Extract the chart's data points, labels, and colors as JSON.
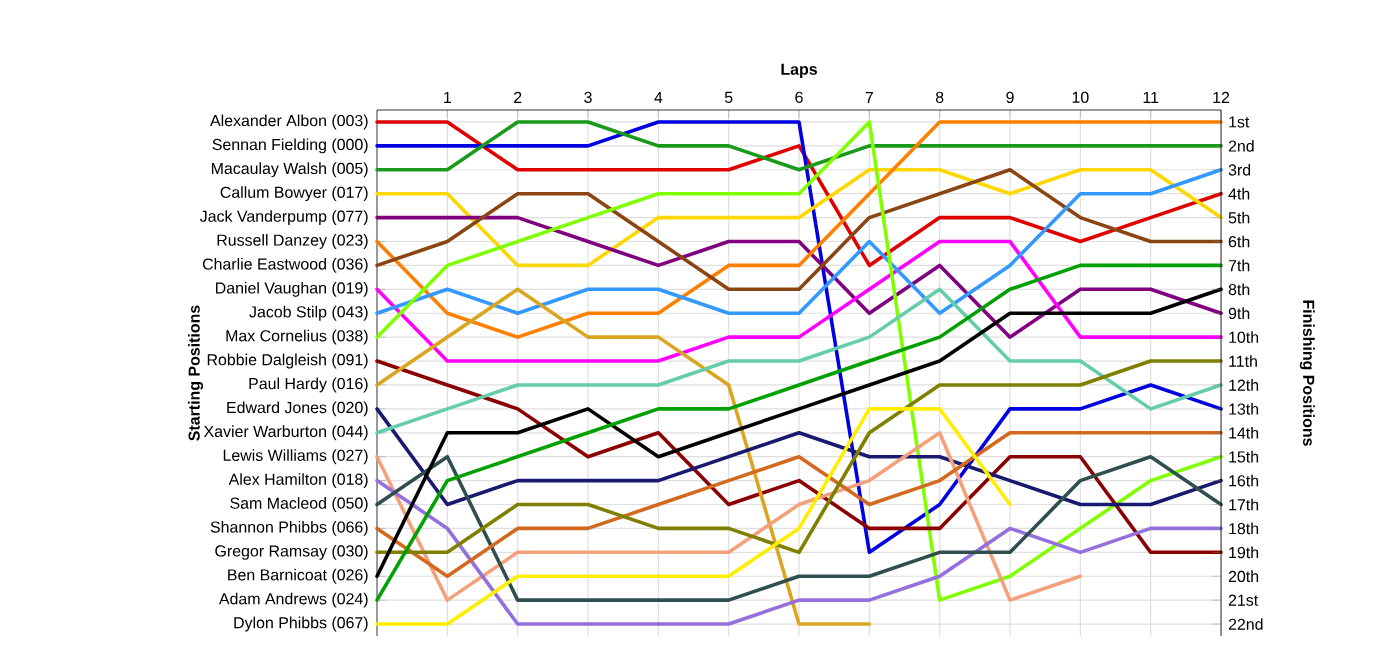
{
  "chart_data": {
    "type": "line",
    "xlabel": "Laps",
    "annotations": [
      "Starting Positions"
    ],
    "y2label": "Finishing Positions",
    "x": [
      0,
      1,
      2,
      3,
      4,
      5,
      6,
      7,
      8,
      9,
      10,
      11,
      12
    ],
    "xlim": [
      0,
      12
    ],
    "xticks": [
      1,
      2,
      3,
      4,
      5,
      6,
      7,
      8,
      9,
      10,
      11,
      12
    ],
    "ylim": [
      22.5,
      0.5
    ],
    "yticks": [
      {
        "value": 1,
        "label": "1st"
      },
      {
        "value": 2,
        "label": "2nd"
      },
      {
        "value": 3,
        "label": "3rd"
      },
      {
        "value": 4,
        "label": "4th"
      },
      {
        "value": 5,
        "label": "5th"
      },
      {
        "value": 6,
        "label": "6th"
      },
      {
        "value": 7,
        "label": "7th"
      },
      {
        "value": 8,
        "label": "8th"
      },
      {
        "value": 9,
        "label": "9th"
      },
      {
        "value": 10,
        "label": "10th"
      },
      {
        "value": 11,
        "label": "11th"
      },
      {
        "value": 12,
        "label": "12th"
      },
      {
        "value": 13,
        "label": "13th"
      },
      {
        "value": 14,
        "label": "14th"
      },
      {
        "value": 15,
        "label": "15th"
      },
      {
        "value": 16,
        "label": "16th"
      },
      {
        "value": 17,
        "label": "17th"
      },
      {
        "value": 18,
        "label": "18th"
      },
      {
        "value": 19,
        "label": "19th"
      },
      {
        "value": 20,
        "label": "20th"
      },
      {
        "value": 21,
        "label": "21st"
      },
      {
        "value": 22,
        "label": "22nd"
      }
    ],
    "grid": true,
    "series": [
      {
        "name": "Alexander Albon (003)",
        "color": "#e00000",
        "values": [
          1,
          1,
          3,
          3,
          3,
          3,
          2,
          7,
          5,
          5,
          6,
          5,
          4
        ]
      },
      {
        "name": "Sennan Fielding (000)",
        "color": "#0000e0",
        "values": [
          2,
          2,
          2,
          2,
          1,
          1,
          1,
          19,
          17,
          13,
          13,
          12,
          13
        ]
      },
      {
        "name": "Macaulay Walsh (005)",
        "color": "#1a9a1a",
        "values": [
          3,
          3,
          1,
          1,
          2,
          2,
          3,
          2,
          2,
          2,
          2,
          2,
          2
        ]
      },
      {
        "name": "Callum Bowyer (017)",
        "color": "#ffd700",
        "values": [
          4,
          4,
          7,
          7,
          5,
          5,
          5,
          3,
          3,
          4,
          3,
          3,
          5
        ]
      },
      {
        "name": "Jack Vanderpump (077)",
        "color": "#800080",
        "values": [
          5,
          5,
          5,
          6,
          7,
          6,
          6,
          9,
          7,
          10,
          8,
          8,
          9
        ]
      },
      {
        "name": "Russell Danzey (023)",
        "color": "#ff8000",
        "values": [
          6,
          9,
          10,
          9,
          9,
          7,
          7,
          4,
          1,
          1,
          1,
          1,
          1
        ]
      },
      {
        "name": "Charlie Eastwood (036)",
        "color": "#8b4513",
        "values": [
          7,
          6,
          4,
          4,
          6,
          8,
          8,
          5,
          4,
          3,
          5,
          6,
          6
        ]
      },
      {
        "name": "Daniel Vaughan (019)",
        "color": "#ff00ff",
        "values": [
          8,
          11,
          11,
          11,
          11,
          10,
          10,
          8,
          6,
          6,
          10,
          10,
          10
        ]
      },
      {
        "name": "Jacob Stilp (043)",
        "color": "#3399ff",
        "values": [
          9,
          8,
          9,
          8,
          8,
          9,
          9,
          6,
          9,
          7,
          4,
          4,
          3
        ]
      },
      {
        "name": "Max Cornelius (038)",
        "color": "#80ff00",
        "values": [
          10,
          7,
          6,
          5,
          4,
          4,
          4,
          1,
          21,
          20,
          18,
          16,
          15
        ]
      },
      {
        "name": "Robbie Dalgleish (091)",
        "color": "#8b0000",
        "values": [
          11,
          12,
          13,
          15,
          14,
          17,
          16,
          18,
          18,
          15,
          15,
          19,
          19
        ]
      },
      {
        "name": "Paul Hardy (016)",
        "color": "#daa520",
        "values": [
          12,
          10,
          8,
          10,
          10,
          12,
          22,
          22,
          null,
          null,
          null,
          null,
          null
        ]
      },
      {
        "name": "Edward Jones (020)",
        "color": "#191970",
        "values": [
          13,
          17,
          16,
          16,
          16,
          15,
          14,
          15,
          15,
          16,
          17,
          17,
          16
        ]
      },
      {
        "name": "Xavier Warburton (044)",
        "color": "#66cdaa",
        "values": [
          14,
          13,
          12,
          12,
          12,
          11,
          11,
          10,
          8,
          11,
          11,
          13,
          12
        ]
      },
      {
        "name": "Lewis Williams (027)",
        "color": "#f4a07a",
        "values": [
          15,
          21,
          19,
          19,
          19,
          19,
          17,
          16,
          14,
          21,
          20,
          null,
          null
        ]
      },
      {
        "name": "Alex Hamilton (018)",
        "color": "#9370db",
        "values": [
          16,
          18,
          22,
          22,
          22,
          22,
          21,
          21,
          20,
          18,
          19,
          18,
          18
        ]
      },
      {
        "name": "Sam Macleod (050)",
        "color": "#2f4f4f",
        "values": [
          17,
          15,
          21,
          21,
          21,
          21,
          20,
          20,
          19,
          19,
          16,
          15,
          17
        ]
      },
      {
        "name": "Shannon Phibbs (066)",
        "color": "#d2691e",
        "values": [
          18,
          20,
          18,
          18,
          17,
          16,
          15,
          17,
          16,
          14,
          14,
          14,
          14
        ]
      },
      {
        "name": "Gregor Ramsay (030)",
        "color": "#808000",
        "values": [
          19,
          19,
          17,
          17,
          18,
          18,
          19,
          14,
          12,
          12,
          12,
          11,
          11
        ]
      },
      {
        "name": "Ben Barnicoat (026)",
        "color": "#000000",
        "values": [
          20,
          14,
          14,
          13,
          15,
          14,
          13,
          12,
          11,
          9,
          9,
          9,
          8
        ]
      },
      {
        "name": "Adam Andrews (024)",
        "color": "#00a000",
        "values": [
          21,
          16,
          15,
          14,
          13,
          13,
          12,
          11,
          10,
          8,
          7,
          7,
          7
        ]
      },
      {
        "name": "Dylon Phibbs (067)",
        "color": "#ffee00",
        "values": [
          22,
          22,
          20,
          20,
          20,
          20,
          18,
          13,
          13,
          17,
          null,
          null,
          null
        ]
      }
    ]
  }
}
